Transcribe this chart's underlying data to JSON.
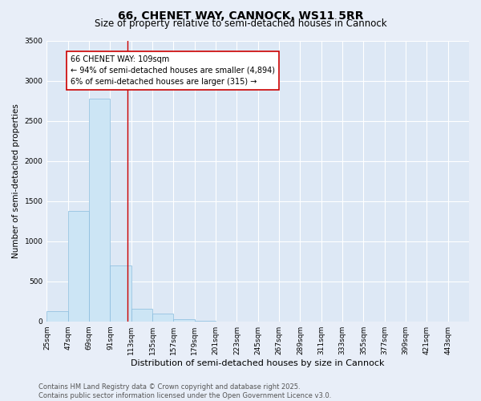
{
  "title": "66, CHENET WAY, CANNOCK, WS11 5RR",
  "subtitle": "Size of property relative to semi-detached houses in Cannock",
  "xlabel": "Distribution of semi-detached houses by size in Cannock",
  "ylabel": "Number of semi-detached properties",
  "bar_edges": [
    25,
    47,
    69,
    91,
    113,
    135,
    157,
    179,
    201,
    223,
    245,
    267,
    289,
    311,
    333,
    355,
    377,
    399,
    421,
    443,
    465
  ],
  "bar_heights": [
    130,
    1380,
    2780,
    700,
    160,
    100,
    30,
    10,
    2,
    0,
    0,
    0,
    0,
    0,
    0,
    0,
    0,
    0,
    0,
    0
  ],
  "bar_color": "#cce5f5",
  "bar_edgecolor": "#88bbdd",
  "property_line_x": 109,
  "property_line_color": "#cc0000",
  "annotation_text": "66 CHENET WAY: 109sqm\n← 94% of semi-detached houses are smaller (4,894)\n6% of semi-detached houses are larger (315) →",
  "annotation_box_facecolor": "#ffffff",
  "annotation_box_edgecolor": "#cc0000",
  "ylim": [
    0,
    3500
  ],
  "yticks": [
    0,
    500,
    1000,
    1500,
    2000,
    2500,
    3000,
    3500
  ],
  "background_color": "#e8eef8",
  "plot_bg_color": "#dde8f5",
  "grid_color": "#ffffff",
  "footer_line1": "Contains HM Land Registry data © Crown copyright and database right 2025.",
  "footer_line2": "Contains public sector information licensed under the Open Government Licence v3.0.",
  "title_fontsize": 10,
  "subtitle_fontsize": 8.5,
  "xlabel_fontsize": 8,
  "ylabel_fontsize": 7.5,
  "tick_fontsize": 6.5,
  "annotation_fontsize": 7,
  "footer_fontsize": 6
}
